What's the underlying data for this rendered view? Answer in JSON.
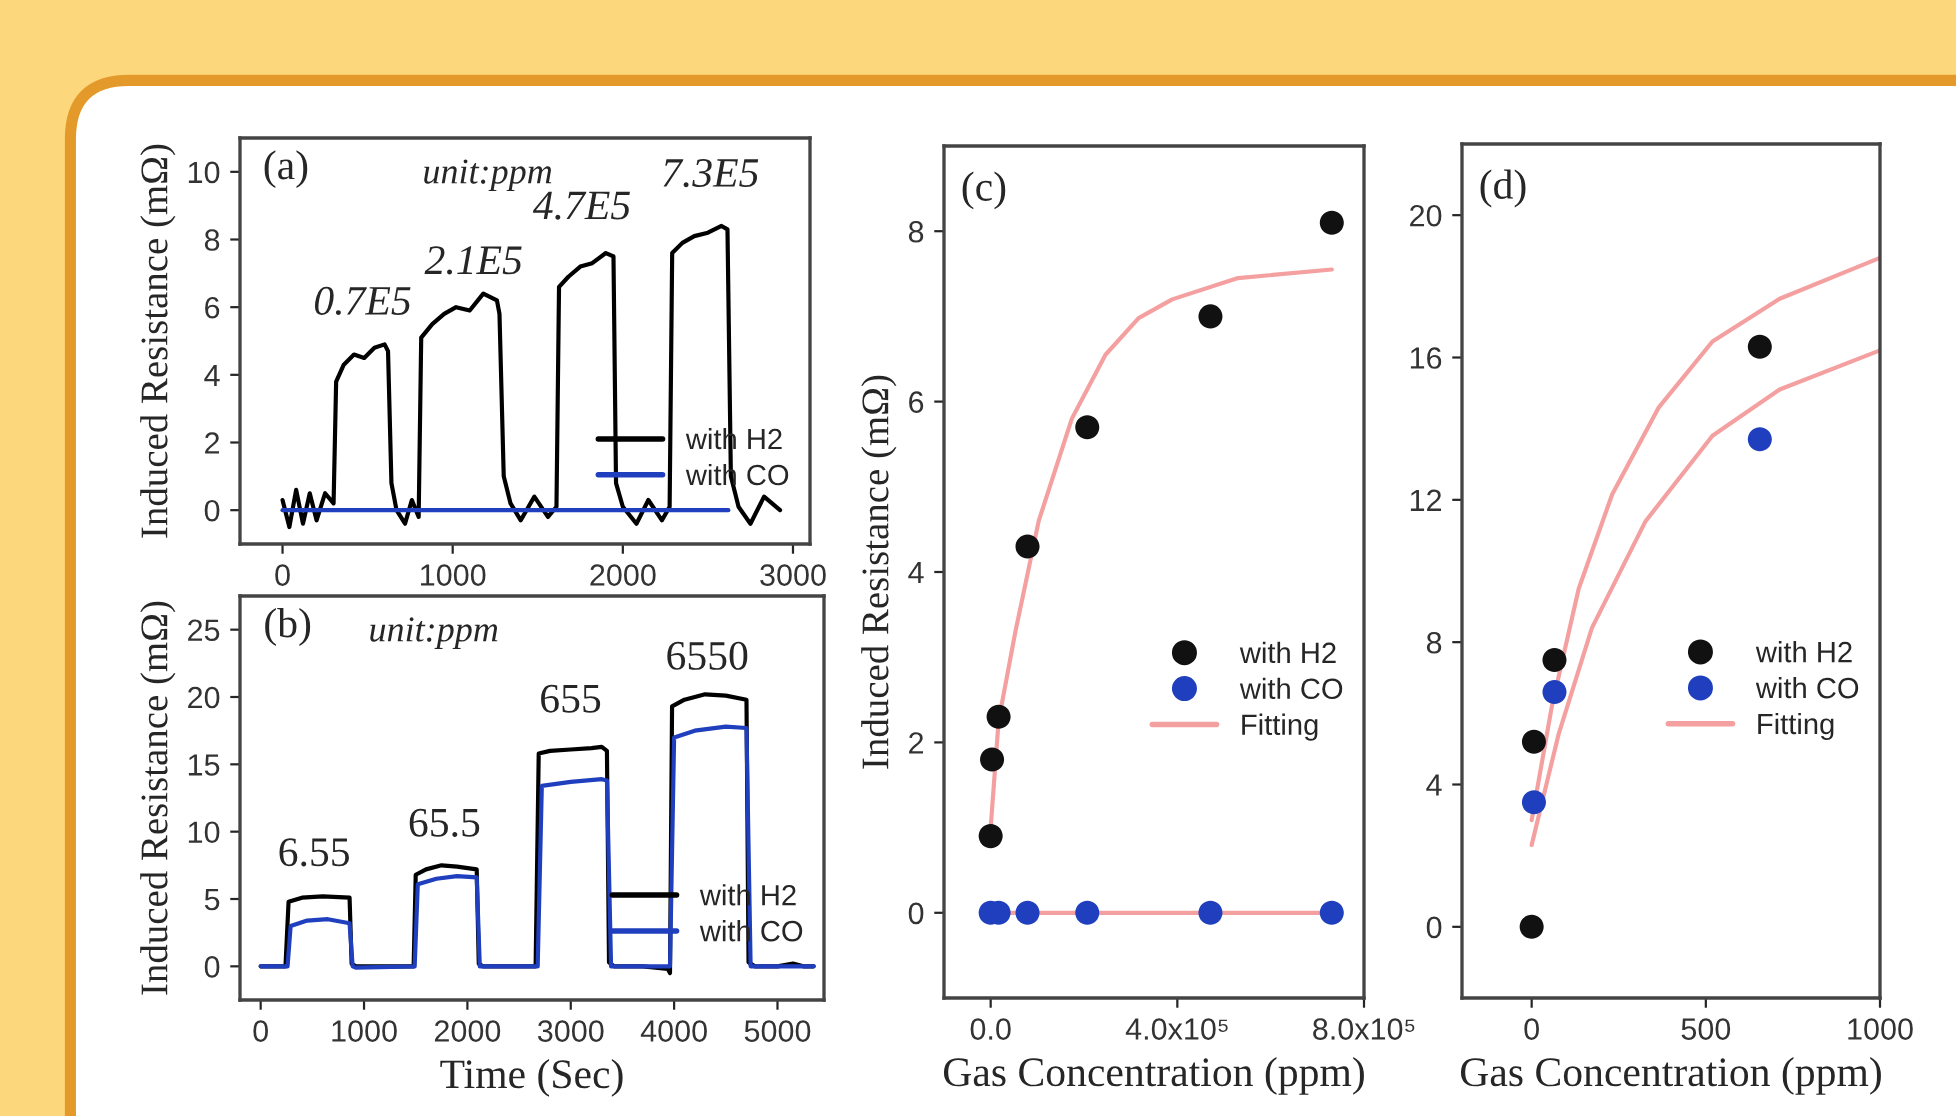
{
  "chart_data": [
    {
      "type": "line",
      "title": "(a)",
      "ylabel": "Induced Resistance (mΩ)",
      "annotations": [
        "unit:ppm",
        "0.7E5",
        "2.1E5",
        "4.7E5",
        "7.3E5"
      ],
      "series": [
        {
          "name": "with H2",
          "color": "#000000",
          "x": [
            0,
            40,
            80,
            120,
            160,
            200,
            250,
            300,
            315,
            360,
            420,
            480,
            540,
            600,
            620,
            640,
            670,
            720,
            760,
            800,
            815,
            880,
            950,
            1020,
            1100,
            1180,
            1260,
            1275,
            1300,
            1340,
            1400,
            1480,
            1560,
            1610,
            1625,
            1680,
            1750,
            1820,
            1900,
            1945,
            1960,
            2000,
            2080,
            2150,
            2230,
            2275,
            2290,
            2350,
            2420,
            2500,
            2580,
            2615,
            2635,
            2680,
            2750,
            2830,
            2924
          ],
          "values": [
            0.3,
            -0.5,
            0.6,
            -0.4,
            0.5,
            -0.3,
            0.5,
            0.2,
            3.8,
            4.3,
            4.6,
            4.5,
            4.8,
            4.9,
            4.7,
            0.8,
            0.0,
            -0.4,
            0.3,
            -0.2,
            5.1,
            5.5,
            5.8,
            6.0,
            5.9,
            6.4,
            6.2,
            5.8,
            1.0,
            0.2,
            -0.3,
            0.4,
            -0.2,
            0.1,
            6.6,
            6.9,
            7.2,
            7.3,
            7.6,
            7.5,
            0.8,
            0.1,
            -0.4,
            0.3,
            -0.3,
            0.1,
            7.6,
            7.9,
            8.1,
            8.2,
            8.4,
            8.3,
            1.0,
            0.1,
            -0.4,
            0.4,
            0.0
          ]
        },
        {
          "name": "with CO",
          "color": "#1f3fbf",
          "x": [
            0,
            2620
          ],
          "values": [
            0,
            0
          ]
        }
      ],
      "xlim": [
        -250,
        3100
      ],
      "ylim": [
        -1,
        11
      ],
      "xticks": [
        0,
        1000,
        2000,
        3000
      ],
      "yticks": [
        0,
        2,
        4,
        6,
        8,
        10
      ],
      "legend": "bottom right"
    },
    {
      "type": "line",
      "title": "(b)",
      "xlabel": "Time (Sec)",
      "ylabel": "Induced Resistance (mΩ)",
      "annotations": [
        "unit:ppm",
        "6.55",
        "65.5",
        "655",
        "6550"
      ],
      "series": [
        {
          "name": "with H2",
          "color": "#000000",
          "x": [
            0,
            240,
            270,
            400,
            600,
            860,
            880,
            920,
            1200,
            1480,
            1500,
            1600,
            1750,
            1900,
            2090,
            2110,
            2150,
            2400,
            2660,
            2690,
            2800,
            3000,
            3200,
            3300,
            3350,
            3370,
            3420,
            3700,
            3940,
            3960,
            3980,
            4100,
            4300,
            4500,
            4700,
            4720,
            4780,
            5000,
            5150,
            5250,
            5350
          ],
          "values": [
            0,
            0,
            4.8,
            5.1,
            5.2,
            5.1,
            0.2,
            0,
            0,
            0,
            6.8,
            7.2,
            7.5,
            7.4,
            7.2,
            0.2,
            0,
            0,
            0,
            15.8,
            16.0,
            16.1,
            16.2,
            16.3,
            16.0,
            0.3,
            0,
            0,
            -0.2,
            -0.5,
            19.3,
            19.8,
            20.2,
            20.1,
            19.8,
            0.3,
            0,
            0,
            0.2,
            0,
            0
          ]
        },
        {
          "name": "with CO",
          "color": "#1f3fbf",
          "x": [
            0,
            260,
            290,
            450,
            650,
            860,
            890,
            920,
            1490,
            1520,
            1700,
            1900,
            2090,
            2120,
            2680,
            2720,
            3000,
            3300,
            3350,
            3390,
            3960,
            4000,
            4200,
            4500,
            4700,
            4740,
            5350
          ],
          "values": [
            0,
            0,
            3.0,
            3.4,
            3.5,
            3.2,
            0,
            -0.1,
            0,
            6.1,
            6.5,
            6.7,
            6.6,
            0,
            0,
            13.4,
            13.7,
            13.9,
            13.8,
            0,
            0,
            17.0,
            17.5,
            17.8,
            17.7,
            0,
            0
          ]
        }
      ],
      "xlim": [
        -200,
        5450
      ],
      "ylim": [
        -2.5,
        27.5
      ],
      "xticks": [
        0,
        1000,
        2000,
        3000,
        4000,
        5000
      ],
      "yticks": [
        0,
        5,
        10,
        15,
        20,
        25
      ],
      "legend": "bottom right"
    },
    {
      "type": "scatter",
      "title": "(c)",
      "xlabel": "Gas Concentration (ppm)",
      "ylabel": "Induced Resistance (mΩ)",
      "series": [
        {
          "name": "with H2",
          "color": "#111111",
          "marker": "circle",
          "x": [
            0,
            3000,
            17000,
            79000,
            207000,
            471000,
            731000
          ],
          "values": [
            0.9,
            1.8,
            2.3,
            4.3,
            5.7,
            7.0,
            8.1
          ]
        },
        {
          "name": "with CO",
          "color": "#1f3fbf",
          "marker": "circle",
          "x": [
            0,
            17000,
            79000,
            207000,
            471000,
            731000
          ],
          "values": [
            0,
            0,
            0,
            0,
            0,
            0
          ]
        },
        {
          "name": "Fitting",
          "type": "line",
          "color": "#f4a0a0",
          "x": [
            0,
            17000,
            53000,
            103000,
            174000,
            246000,
            317000,
            389000,
            530000,
            731000
          ],
          "values": [
            1.0,
            2.25,
            3.3,
            4.6,
            5.8,
            6.55,
            6.98,
            7.2,
            7.45,
            7.55
          ]
        },
        {
          "type": "line",
          "color": "#f4a0a0",
          "x": [
            0,
            730000
          ],
          "values": [
            0,
            0
          ]
        }
      ],
      "xlim": [
        -100000,
        800000
      ],
      "ylim": [
        -1,
        9
      ],
      "xticks": [
        {
          "value": 0,
          "label": "0.0"
        },
        {
          "value": 400000,
          "label": "4.0x10⁵"
        },
        {
          "value": 800000,
          "label": "8.0x10⁵"
        }
      ],
      "yticks": [
        0,
        2,
        4,
        6,
        8
      ],
      "legend": "right"
    },
    {
      "type": "scatter",
      "title": "(d)",
      "xlabel": "Gas Concentration (ppm)",
      "series": [
        {
          "name": "with H2",
          "color": "#111111",
          "marker": "circle",
          "x": [
            0,
            6.55,
            65.5,
            655
          ],
          "values": [
            0,
            5.2,
            7.5,
            16.3
          ]
        },
        {
          "name": "with CO",
          "color": "#1f3fbf",
          "marker": "circle",
          "x": [
            6.55,
            65.5,
            655
          ],
          "values": [
            3.5,
            6.6,
            13.7
          ]
        },
        {
          "name": "Fitting",
          "type": "line",
          "color": "#f4a0a0",
          "x": [
            0,
            58,
            135,
            231,
            365,
            519,
            712,
            1000
          ],
          "values": [
            3.0,
            6.2,
            9.5,
            12.15,
            14.6,
            16.45,
            17.65,
            18.8
          ]
        },
        {
          "type": "line",
          "color": "#f4a0a0",
          "x": [
            0,
            77,
            173,
            327,
            519,
            712,
            1000
          ],
          "values": [
            2.3,
            5.4,
            8.4,
            11.4,
            13.8,
            15.1,
            16.2
          ]
        }
      ],
      "xlim": [
        -200,
        1000
      ],
      "ylim": [
        -2,
        22
      ],
      "xticks": [
        0,
        500,
        1000
      ],
      "yticks": [
        0,
        4,
        8,
        12,
        16,
        20
      ],
      "legend": "right"
    }
  ]
}
